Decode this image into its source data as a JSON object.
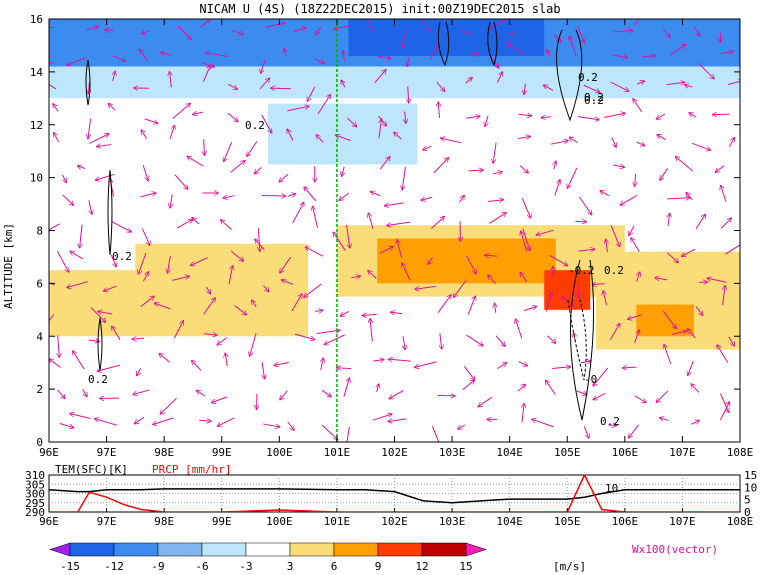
{
  "chart_data": [
    {
      "type": "heatmap",
      "title": "NICAM U (4S) (18Z22DEC2015) init:00Z19DEC2015 slab",
      "ylabel": "ALTITUDE [km]",
      "xlabel": "",
      "x_ticks": [
        "96E",
        "97E",
        "98E",
        "99E",
        "100E",
        "101E",
        "102E",
        "103E",
        "104E",
        "105E",
        "106E",
        "107E",
        "108E"
      ],
      "y_ticks": [
        "0",
        "2",
        "4",
        "6",
        "8",
        "10",
        "12",
        "14",
        "16"
      ],
      "xlim": [
        96,
        108
      ],
      "ylim": [
        0,
        16
      ],
      "grid": false,
      "vector_label": "Wx100(vector)",
      "colorbar": {
        "unit": "[m/s]",
        "ticks": [
          "-15",
          "-12",
          "-9",
          "-6",
          "-3",
          "3",
          "6",
          "9",
          "12",
          "15"
        ],
        "colors": [
          "#a020f0",
          "#1e64e6",
          "#3c8cf0",
          "#82b4f0",
          "#bee6fa",
          "#ffffff",
          "#fadc78",
          "#ffa000",
          "#ff3c00",
          "#be0000",
          "#f01eb4"
        ]
      },
      "contour_labels": [
        "0.2",
        "0.2",
        "0.2",
        "0.2",
        "-0.2",
        "0.2",
        "0.2",
        "-0",
        "0.2",
        "0.2"
      ],
      "vertical_marker_lon": 101,
      "regions": [
        {
          "x0": 96,
          "x1": 108,
          "y0": 14.2,
          "y1": 16,
          "value": -12
        },
        {
          "x0": 101.2,
          "x1": 104.6,
          "y0": 14.6,
          "y1": 16,
          "value": -15
        },
        {
          "x0": 96,
          "x1": 108,
          "y0": 13,
          "y1": 14.2,
          "value": -6
        },
        {
          "x0": 96,
          "x1": 108,
          "y0": 11.5,
          "y1": 13,
          "value": -3
        },
        {
          "x0": 99.8,
          "x1": 102.4,
          "y0": 10.5,
          "y1": 12.8,
          "value": -6
        },
        {
          "x0": 105.6,
          "x1": 108,
          "y0": 9.6,
          "y1": 12,
          "value": -3
        },
        {
          "x0": 101,
          "x1": 106,
          "y0": 5.5,
          "y1": 8.2,
          "value": 3
        },
        {
          "x0": 101.7,
          "x1": 104.8,
          "y0": 6,
          "y1": 7.7,
          "value": 6
        },
        {
          "x0": 104.6,
          "x1": 105.4,
          "y0": 5,
          "y1": 6.5,
          "value": 9
        },
        {
          "x0": 96,
          "x1": 97.8,
          "y0": 4,
          "y1": 6.5,
          "value": 3
        },
        {
          "x0": 105.5,
          "x1": 108,
          "y0": 3.5,
          "y1": 7.2,
          "value": 3
        },
        {
          "x0": 106.2,
          "x1": 107.2,
          "y0": 4,
          "y1": 5.2,
          "value": 6
        },
        {
          "x0": 97.5,
          "x1": 100.5,
          "y0": 4,
          "y1": 7.5,
          "value": 3
        }
      ]
    },
    {
      "type": "line",
      "x": [
        96,
        96.5,
        96.7,
        97,
        97.3,
        97.6,
        98,
        99,
        100,
        101,
        101.5,
        102,
        102.5,
        103,
        103.5,
        104,
        104.5,
        105,
        105.3,
        105.6,
        106,
        106.5,
        107,
        108
      ],
      "series": [
        {
          "name": "TEM(SFC)[K]",
          "axis": "left",
          "color": "#000000",
          "values": [
            302,
            301,
            301,
            302,
            302,
            302,
            302.5,
            302.5,
            302.5,
            302,
            302,
            301,
            296,
            295,
            296,
            297,
            297,
            297,
            298,
            300,
            302,
            302,
            302,
            302
          ]
        },
        {
          "name": "PRCP [mm/hr]",
          "axis": "right",
          "color": "#ff0000",
          "values": [
            0,
            0,
            8,
            6,
            3,
            1,
            0,
            0,
            0.8,
            0,
            0,
            0,
            0,
            0,
            0,
            0,
            0,
            0,
            15,
            1,
            0,
            0,
            0,
            0
          ]
        }
      ],
      "x_ticks": [
        "96E",
        "97E",
        "98E",
        "99E",
        "100E",
        "101E",
        "102E",
        "103E",
        "104E",
        "105E",
        "106E",
        "107E",
        "108E"
      ],
      "yleft_ticks": [
        "310",
        "305",
        "300",
        "295",
        "290"
      ],
      "yright_ticks": [
        "15",
        "10",
        "5",
        "0"
      ],
      "ylim_left": [
        290,
        310
      ],
      "ylim_right": [
        0,
        15
      ],
      "annotation": "10"
    }
  ]
}
